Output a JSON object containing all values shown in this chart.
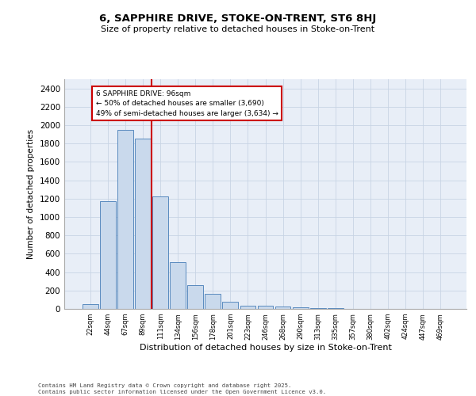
{
  "title1": "6, SAPPHIRE DRIVE, STOKE-ON-TRENT, ST6 8HJ",
  "title2": "Size of property relative to detached houses in Stoke-on-Trent",
  "xlabel": "Distribution of detached houses by size in Stoke-on-Trent",
  "ylabel": "Number of detached properties",
  "categories": [
    "22sqm",
    "44sqm",
    "67sqm",
    "89sqm",
    "111sqm",
    "134sqm",
    "156sqm",
    "178sqm",
    "201sqm",
    "223sqm",
    "246sqm",
    "268sqm",
    "290sqm",
    "313sqm",
    "335sqm",
    "357sqm",
    "380sqm",
    "402sqm",
    "424sqm",
    "447sqm",
    "469sqm"
  ],
  "values": [
    50,
    1175,
    1950,
    1850,
    1225,
    505,
    255,
    160,
    80,
    35,
    35,
    25,
    20,
    10,
    5,
    3,
    2,
    1,
    1,
    0,
    0
  ],
  "bar_color": "#c9d9ec",
  "bar_edge_color": "#5a8bbf",
  "grid_color": "#c8d4e4",
  "background_color": "#e8eef7",
  "red_line_x": 3.5,
  "annotation_text": "6 SAPPHIRE DRIVE: 96sqm\n← 50% of detached houses are smaller (3,690)\n49% of semi-detached houses are larger (3,634) →",
  "annotation_box_color": "#ffffff",
  "annotation_box_edge": "#cc0000",
  "ylim": [
    0,
    2500
  ],
  "yticks": [
    0,
    200,
    400,
    600,
    800,
    1000,
    1200,
    1400,
    1600,
    1800,
    2000,
    2200,
    2400
  ],
  "footer1": "Contains HM Land Registry data © Crown copyright and database right 2025.",
  "footer2": "Contains public sector information licensed under the Open Government Licence v3.0."
}
